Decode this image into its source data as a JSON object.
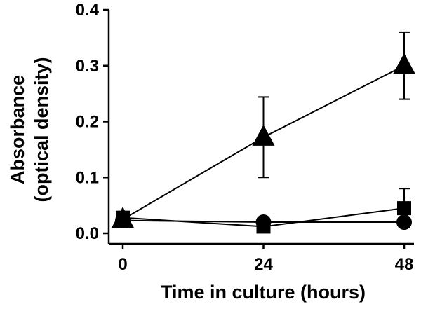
{
  "chart_data": {
    "type": "line",
    "title": "",
    "xlabel": "Time in culture (hours)",
    "ylabel_line1": "Absorbance",
    "ylabel_line2": "(optical density)",
    "x": [
      0,
      24,
      48
    ],
    "x_ticks": [
      "0",
      "24",
      "48"
    ],
    "y_ticks": [
      "0.0",
      "0.1",
      "0.2",
      "0.3",
      "0.4"
    ],
    "ylim": [
      0,
      0.4
    ],
    "xlim": [
      0,
      48
    ],
    "grid": false,
    "legend": "none",
    "series": [
      {
        "marker": "triangle",
        "values": [
          0.025,
          0.172,
          0.3
        ],
        "errors": [
          0.0,
          0.072,
          0.06
        ]
      },
      {
        "marker": "square",
        "values": [
          0.028,
          0.012,
          0.045
        ],
        "errors": [
          0.0,
          0.0,
          0.035
        ]
      },
      {
        "marker": "circle",
        "values": [
          0.023,
          0.02,
          0.02
        ],
        "errors": [
          0.0,
          0.0,
          0.0
        ]
      }
    ],
    "colors": {
      "ink": "#000000",
      "background": "#ffffff"
    }
  }
}
